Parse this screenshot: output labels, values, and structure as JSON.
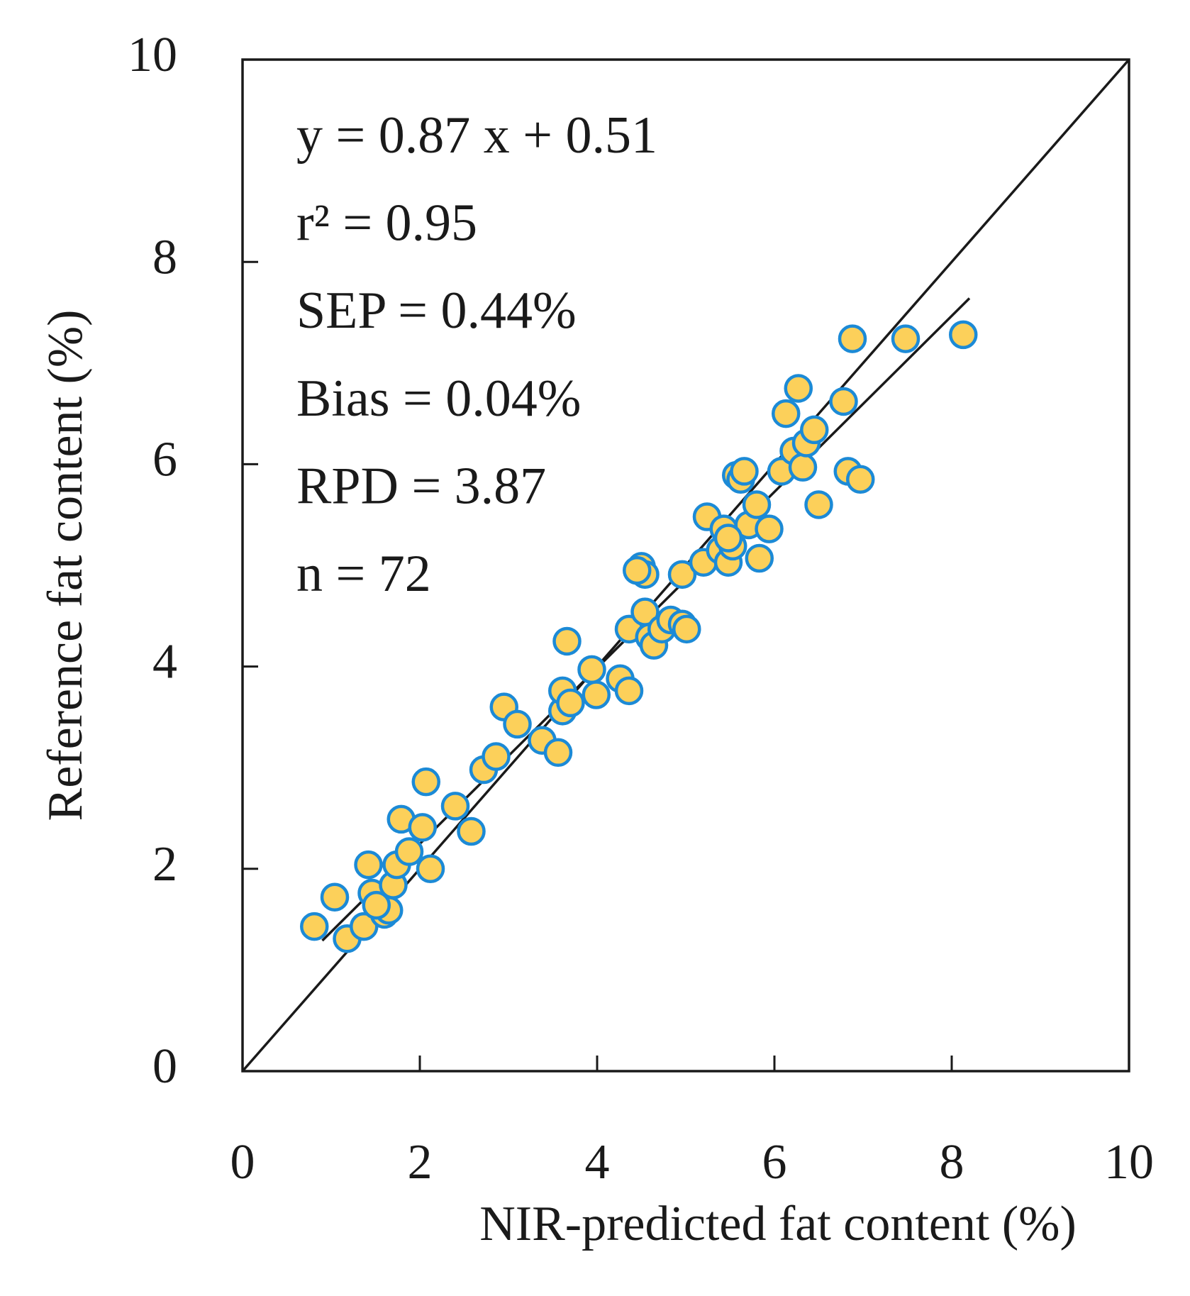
{
  "chart_data": {
    "type": "scatter",
    "x_label": "NIR-predicted fat content (%)",
    "y_label": "Reference fat content (%)",
    "annotations": [
      "y = 0.87 x + 0.51",
      "r² = 0.95",
      "SEP = 0.44%",
      "Bias = 0.04%",
      "RPD = 3.87",
      "n = 72"
    ],
    "xlim": [
      0,
      10
    ],
    "ylim": [
      0,
      10
    ],
    "xticks": [
      0,
      2,
      4,
      6,
      8,
      10
    ],
    "yticks": [
      0,
      2,
      4,
      6,
      8,
      10
    ],
    "color": "#fcd05a",
    "edge_color": "#1c8ad6",
    "x": [
      0.81,
      1.04,
      1.18,
      1.37,
      1.42,
      1.46,
      1.6,
      1.65,
      1.7,
      1.79,
      1.74,
      2.03,
      2.07,
      2.12,
      1.88,
      2.4,
      2.58,
      2.72,
      2.86,
      2.95,
      3.1,
      3.38,
      3.56,
      3.61,
      3.61,
      3.66,
      3.7,
      3.94,
      3.99,
      4.26,
      4.36,
      4.36,
      4.5,
      4.54,
      4.54,
      4.59,
      4.64,
      4.73,
      4.83,
      4.96,
      5.01,
      4.96,
      5.2,
      5.24,
      5.39,
      5.43,
      5.48,
      5.53,
      5.57,
      5.62,
      5.71,
      5.8,
      5.83,
      5.94,
      6.08,
      6.13,
      6.22,
      6.27,
      6.32,
      6.36,
      6.45,
      6.5,
      6.78,
      6.83,
      6.88,
      6.97,
      7.48,
      8.13,
      5.66,
      5.48,
      1.51,
      4.45
    ],
    "values": [
      1.43,
      1.72,
      1.31,
      1.43,
      2.04,
      1.76,
      1.55,
      1.59,
      1.84,
      2.49,
      2.04,
      2.41,
      2.86,
      2.0,
      2.17,
      2.62,
      2.37,
      2.98,
      3.11,
      3.6,
      3.43,
      3.27,
      3.15,
      3.56,
      3.76,
      4.25,
      3.64,
      3.97,
      3.72,
      3.88,
      3.76,
      4.37,
      4.99,
      4.91,
      4.54,
      4.29,
      4.21,
      4.37,
      4.46,
      4.42,
      4.37,
      4.91,
      5.03,
      5.48,
      5.15,
      5.36,
      5.03,
      5.19,
      5.89,
      5.85,
      5.4,
      5.6,
      5.07,
      5.36,
      5.93,
      6.5,
      6.13,
      6.75,
      5.97,
      6.21,
      6.34,
      5.6,
      6.62,
      5.93,
      7.24,
      5.85,
      7.24,
      7.28,
      5.93,
      5.27,
      1.64,
      4.95
    ],
    "reference_lines": [
      {
        "x": [
          0,
          10
        ],
        "y": [
          0,
          10
        ]
      },
      {
        "x": [
          0.9,
          8.2
        ],
        "y": [
          1.29,
          7.64
        ]
      }
    ]
  }
}
